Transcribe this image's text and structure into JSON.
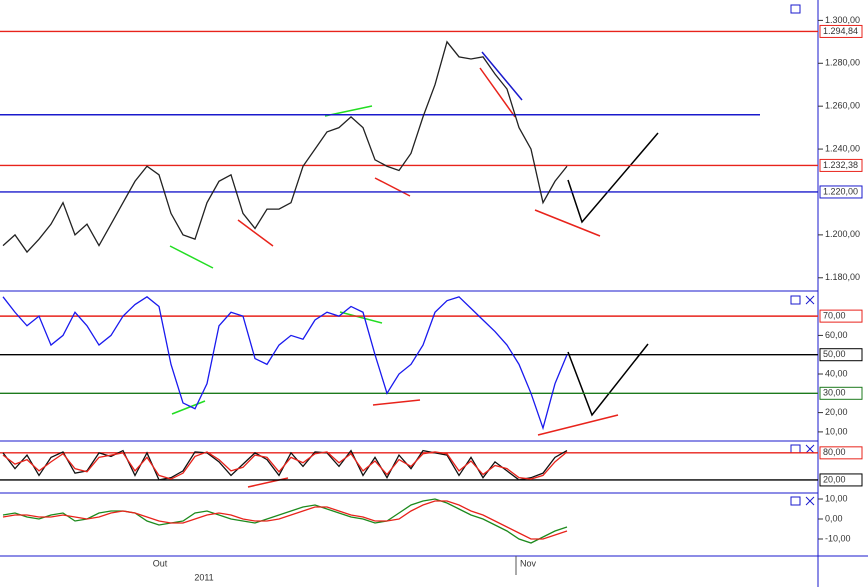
{
  "chart_data": [
    {
      "type": "line",
      "ylim": [
        1174.3,
        1309.5
      ],
      "yticks": [
        {
          "value": 1300,
          "label": "1.300,00"
        },
        {
          "value": 1280,
          "label": "1.280,00"
        },
        {
          "value": 1260,
          "label": "1.260,00"
        },
        {
          "value": 1240,
          "label": "1.240,00"
        },
        {
          "value": 1200,
          "label": "1.200,00"
        },
        {
          "value": 1180,
          "label": "1.180,00"
        }
      ],
      "levels": [
        {
          "value": 1294.84,
          "label": "1.294,84",
          "color": "#e8231b"
        },
        {
          "value": 1232.38,
          "label": "1.232,38",
          "color": "#e8231b"
        },
        {
          "value": 1220,
          "label": "1.220,00",
          "color": "#1a1acc"
        },
        {
          "value": 1256,
          "color": "#1a1acc"
        }
      ],
      "series": [
        {
          "color": "#222222",
          "values": [
            1195,
            1200,
            1192,
            1198,
            1205,
            1215,
            1200,
            1205,
            1195,
            1205,
            1215,
            1225,
            1232,
            1228,
            1210,
            1200,
            1198,
            1215,
            1225,
            1228,
            1210,
            1203,
            1212,
            1212,
            1215,
            1232,
            1240,
            1248,
            1250,
            1255,
            1250,
            1235,
            1232,
            1230,
            1238,
            1255,
            1270,
            1290,
            1283,
            1282,
            1283,
            1275,
            1268,
            1250,
            1240,
            1215,
            1225,
            1232
          ]
        }
      ]
    },
    {
      "type": "line",
      "ylim": [
        5.8,
        82.5
      ],
      "yticks": [
        {
          "value": 60,
          "label": "60,00"
        },
        {
          "value": 40,
          "label": "40,00"
        },
        {
          "value": 20,
          "label": "20,00"
        },
        {
          "value": 10,
          "label": "10,00"
        }
      ],
      "levels": [
        {
          "value": 70,
          "label": "70,00",
          "color": "#e8231b"
        },
        {
          "value": 50,
          "label": "50,00",
          "color": "#000000"
        },
        {
          "value": 30,
          "label": "30,00",
          "color": "#1d7a1d"
        }
      ],
      "series": [
        {
          "color": "#1a1aee",
          "values": [
            80,
            72,
            65,
            70,
            55,
            60,
            72,
            65,
            55,
            60,
            70,
            76,
            80,
            75,
            45,
            25,
            22,
            35,
            65,
            72,
            70,
            48,
            45,
            55,
            60,
            58,
            68,
            72,
            70,
            75,
            72,
            50,
            30,
            40,
            45,
            55,
            72,
            78,
            80,
            74,
            68,
            62,
            55,
            45,
            30,
            12,
            35,
            50
          ]
        }
      ]
    },
    {
      "type": "line",
      "ylim": [
        -6.7,
        104
      ],
      "levels": [
        {
          "value": 80,
          "label": "80,00",
          "color": "#e8231b"
        },
        {
          "value": 20,
          "label": "20,00",
          "color": "#000000"
        }
      ],
      "series": [
        {
          "color": "#111111",
          "values": [
            80,
            45,
            75,
            30,
            70,
            82,
            35,
            40,
            80,
            72,
            85,
            30,
            80,
            20,
            25,
            40,
            82,
            80,
            60,
            30,
            55,
            80,
            65,
            30,
            80,
            50,
            82,
            80,
            50,
            85,
            30,
            70,
            25,
            75,
            45,
            85,
            80,
            75,
            30,
            70,
            25,
            60,
            40,
            20,
            25,
            35,
            70,
            85
          ]
        },
        {
          "color": "#e8231b",
          "values": [
            75,
            55,
            65,
            40,
            60,
            78,
            45,
            38,
            70,
            75,
            80,
            40,
            70,
            30,
            22,
            35,
            72,
            82,
            65,
            40,
            48,
            75,
            70,
            38,
            70,
            58,
            78,
            82,
            58,
            78,
            40,
            62,
            32,
            65,
            50,
            78,
            82,
            78,
            40,
            62,
            32,
            52,
            45,
            25,
            22,
            30,
            60,
            82
          ]
        }
      ]
    },
    {
      "type": "line",
      "ylim": [
        -18,
        12.5
      ],
      "yticks": [
        {
          "value": 10,
          "label": "10,00"
        },
        {
          "value": 0,
          "label": "0,00"
        },
        {
          "value": -10,
          "label": "-10,00"
        }
      ],
      "series": [
        {
          "color": "#1d8a1d",
          "values": [
            2,
            3,
            1,
            0,
            2,
            3,
            -1,
            0,
            3,
            4,
            4,
            3,
            -1,
            -3,
            -2,
            -1,
            3,
            4,
            2,
            0,
            -1,
            -2,
            0,
            2,
            4,
            6,
            7,
            5,
            3,
            1,
            0,
            -2,
            -1,
            3,
            7,
            9,
            10,
            8,
            5,
            2,
            0,
            -3,
            -6,
            -10,
            -12,
            -9,
            -6,
            -4
          ]
        },
        {
          "color": "#e8231b",
          "values": [
            1,
            2,
            2,
            1,
            1,
            2,
            1,
            0,
            1,
            3,
            4,
            3,
            1,
            -1,
            -2,
            -2,
            0,
            2,
            3,
            2,
            0,
            -1,
            -1,
            0,
            2,
            4,
            6,
            6,
            4,
            2,
            1,
            -1,
            -1,
            0,
            4,
            7,
            9,
            9,
            7,
            4,
            2,
            -1,
            -4,
            -7,
            -10,
            -10,
            -8,
            -6
          ]
        }
      ]
    }
  ],
  "x_axis": {
    "months": [
      "Out",
      "Nov"
    ],
    "year": "2011"
  }
}
